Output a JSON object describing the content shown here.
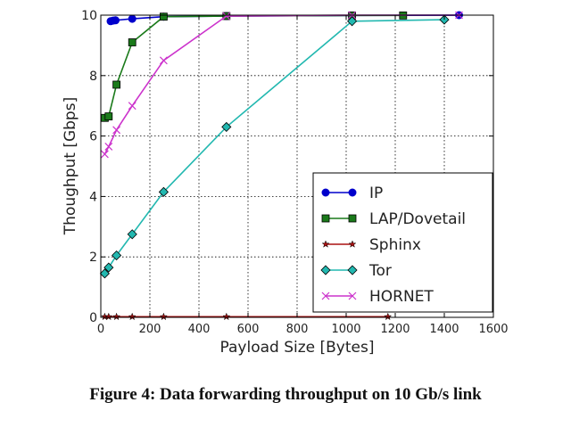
{
  "caption": "Figure 4: Data forwarding throughput on 10 Gb/s link",
  "chart_data": {
    "type": "line",
    "title": "",
    "xlabel": "Payload Size [Bytes]",
    "ylabel": "Thoughput [Gbps]",
    "xlim": [
      0,
      1600
    ],
    "ylim": [
      0,
      10
    ],
    "xticks": [
      0,
      200,
      400,
      600,
      800,
      1000,
      1200,
      1400,
      1600
    ],
    "yticks": [
      0,
      2,
      4,
      6,
      8,
      10
    ],
    "grid": true,
    "legend_position": "lower right",
    "series": [
      {
        "name": "IP",
        "color": "#0000cc",
        "marker": "circle",
        "x": [
          40,
          50,
          60,
          128,
          256,
          512,
          1024,
          1460
        ],
        "y": [
          9.8,
          9.82,
          9.83,
          9.88,
          9.95,
          9.97,
          9.99,
          10.0
        ]
      },
      {
        "name": "LAP/Dovetail",
        "color": "#1a7a1a",
        "marker": "square",
        "x": [
          16,
          32,
          64,
          128,
          256,
          512,
          1024,
          1232
        ],
        "y": [
          6.6,
          6.65,
          7.7,
          9.1,
          9.95,
          9.97,
          9.99,
          9.99
        ]
      },
      {
        "name": "Sphinx",
        "color": "#aa1111",
        "marker": "star",
        "x": [
          16,
          32,
          64,
          128,
          256,
          512,
          1170
        ],
        "y": [
          0.02,
          0.02,
          0.02,
          0.02,
          0.02,
          0.02,
          0.02
        ]
      },
      {
        "name": "Tor",
        "color": "#22b8b0",
        "marker": "diamond",
        "x": [
          16,
          32,
          64,
          128,
          256,
          512,
          1024,
          1400
        ],
        "y": [
          1.45,
          1.65,
          2.05,
          2.75,
          4.15,
          6.3,
          9.8,
          9.85
        ]
      },
      {
        "name": "HORNET",
        "color": "#cc33cc",
        "marker": "x",
        "x": [
          16,
          32,
          64,
          128,
          256,
          512,
          1024,
          1460
        ],
        "y": [
          5.4,
          5.65,
          6.2,
          7.0,
          8.5,
          9.97,
          10.0,
          10.0
        ]
      }
    ]
  }
}
